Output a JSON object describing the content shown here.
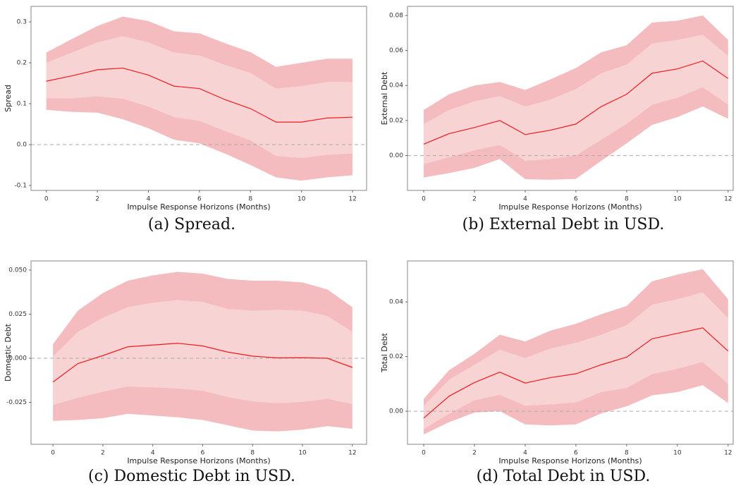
{
  "chart_data": [
    {
      "type": "line",
      "caption": "(a) Spread.",
      "xlabel": "Impulse Response Horizons (Months)",
      "ylabel": "Spread",
      "x": [
        0,
        1,
        2,
        3,
        4,
        5,
        6,
        7,
        8,
        9,
        10,
        11,
        12
      ],
      "xlim": [
        -0.6,
        12.55
      ],
      "xticks": [
        0,
        2,
        4,
        6,
        8,
        10,
        12
      ],
      "ylim": [
        -0.112,
        0.338
      ],
      "yticks": [
        -0.1,
        {
          "value": 0,
          "label": "0.0"
        },
        0.1,
        0.2,
        0.3
      ],
      "hline": 0,
      "color": "#ee1c1c",
      "values": [
        0.155,
        0.168,
        0.183,
        0.187,
        0.17,
        0.143,
        0.137,
        0.11,
        0.088,
        0.055,
        0.055,
        0.065,
        0.067
      ],
      "bands": [
        {
          "color": "#f4bcbe",
          "lower": [
            0.085,
            0.08,
            0.078,
            0.062,
            0.04,
            0.012,
            0.003,
            -0.022,
            -0.05,
            -0.08,
            -0.088,
            -0.08,
            -0.075
          ],
          "upper": [
            0.225,
            0.258,
            0.29,
            0.313,
            0.302,
            0.277,
            0.272,
            0.248,
            0.226,
            0.19,
            0.2,
            0.21,
            0.21
          ]
        },
        {
          "color": "#f8d3d4",
          "lower": [
            0.113,
            0.113,
            0.118,
            0.112,
            0.093,
            0.067,
            0.058,
            0.033,
            0.01,
            -0.028,
            -0.033,
            -0.025,
            -0.022
          ],
          "upper": [
            0.2,
            0.225,
            0.25,
            0.265,
            0.25,
            0.225,
            0.218,
            0.195,
            0.175,
            0.137,
            0.143,
            0.153,
            0.153
          ]
        }
      ]
    },
    {
      "type": "line",
      "caption": "(b) External Debt in USD.",
      "xlabel": "Impulse Response Horizons (Months)",
      "ylabel": "External Debt",
      "x": [
        0,
        1,
        2,
        3,
        4,
        5,
        6,
        7,
        8,
        9,
        10,
        11,
        12
      ],
      "xlim": [
        -0.64,
        12.2
      ],
      "xticks": [
        0,
        2,
        4,
        6,
        8,
        10,
        12
      ],
      "ylim": [
        -0.0199,
        0.0852
      ],
      "yticks": [
        {
          "value": 0,
          "label": "0.00"
        },
        {
          "value": 0.02,
          "label": "0.02"
        },
        {
          "value": 0.04,
          "label": "0.04"
        },
        {
          "value": 0.06,
          "label": "0.06"
        },
        {
          "value": 0.08,
          "label": "0.08"
        }
      ],
      "hline": 0,
      "color": "#ee1c1c",
      "values": [
        0.0065,
        0.0125,
        0.016,
        0.02,
        0.012,
        0.0145,
        0.018,
        0.028,
        0.035,
        0.047,
        0.0495,
        0.054,
        0.044
      ],
      "bands": [
        {
          "color": "#f4bcbe",
          "lower": [
            -0.0125,
            -0.01,
            -0.007,
            -0.002,
            -0.0135,
            -0.0138,
            -0.0133,
            -0.003,
            0.007,
            0.0175,
            0.022,
            0.028,
            0.021
          ],
          "upper": [
            0.026,
            0.035,
            0.04,
            0.042,
            0.0375,
            0.0435,
            0.05,
            0.059,
            0.063,
            0.076,
            0.077,
            0.08,
            0.066
          ]
        },
        {
          "color": "#f8d3d4",
          "lower": [
            -0.005,
            -0.001,
            0.003,
            0.006,
            -0.003,
            -0.002,
            0.0,
            0.009,
            0.018,
            0.029,
            0.033,
            0.039,
            0.029
          ],
          "upper": [
            0.018,
            0.026,
            0.031,
            0.034,
            0.028,
            0.032,
            0.038,
            0.047,
            0.052,
            0.064,
            0.066,
            0.069,
            0.057
          ]
        }
      ]
    },
    {
      "type": "line",
      "caption": "(c) Domestic Debt in USD.",
      "xlabel": "Impulse Response Horizons (Months)",
      "ylabel": "Domestic Debt",
      "x": [
        0,
        1,
        2,
        3,
        4,
        5,
        6,
        7,
        8,
        9,
        10,
        11,
        12
      ],
      "xlim": [
        -0.88,
        12.57
      ],
      "xticks": [
        0,
        2,
        4,
        6,
        8,
        10,
        12
      ],
      "ylim": [
        -0.0488,
        0.0552
      ],
      "yticks": [
        -0.025,
        {
          "value": 0,
          "label": "0.000"
        },
        0.025,
        {
          "value": 0.05,
          "label": "0.050"
        }
      ],
      "hline": 0,
      "color": "#ee1c1c",
      "values": [
        -0.0135,
        -0.003,
        0.0015,
        0.0065,
        0.0075,
        0.0085,
        0.007,
        0.0035,
        0.0012,
        0.0002,
        0.0003,
        0.0,
        -0.0052
      ],
      "bands": [
        {
          "color": "#f4bcbe",
          "lower": [
            -0.0355,
            -0.035,
            -0.034,
            -0.0315,
            -0.0325,
            -0.0335,
            -0.035,
            -0.038,
            -0.041,
            -0.0415,
            -0.0405,
            -0.0385,
            -0.04
          ],
          "upper": [
            0.008,
            0.027,
            0.037,
            0.044,
            0.047,
            0.049,
            0.048,
            0.045,
            0.044,
            0.044,
            0.043,
            0.039,
            0.029
          ]
        },
        {
          "color": "#f8d3d4",
          "lower": [
            -0.0265,
            -0.0225,
            -0.019,
            -0.016,
            -0.0165,
            -0.0172,
            -0.0185,
            -0.022,
            -0.0245,
            -0.0255,
            -0.0248,
            -0.023,
            -0.026
          ],
          "upper": [
            0.001,
            0.015,
            0.023,
            0.029,
            0.0315,
            0.033,
            0.032,
            0.028,
            0.027,
            0.0275,
            0.027,
            0.024,
            0.015
          ]
        }
      ]
    },
    {
      "type": "line",
      "caption": "(d) Total Debt in USD.",
      "xlabel": "Impulse Response Horizons (Months)",
      "ylabel": "Total Debt",
      "x": [
        0,
        1,
        2,
        3,
        4,
        5,
        6,
        7,
        8,
        9,
        10,
        11,
        12
      ],
      "xlim": [
        -0.64,
        12.2
      ],
      "xticks": [
        0,
        2,
        4,
        6,
        8,
        10,
        12
      ],
      "ylim": [
        -0.0121,
        0.055
      ],
      "yticks": [
        {
          "value": 0,
          "label": "0.00"
        },
        {
          "value": 0.02,
          "label": "0.02"
        },
        {
          "value": 0.04,
          "label": "0.04"
        }
      ],
      "hline": 0,
      "color": "#ee1c1c",
      "values": [
        -0.0025,
        0.0055,
        0.0105,
        0.0143,
        0.0103,
        0.0123,
        0.0137,
        0.017,
        0.0198,
        0.0265,
        0.0285,
        0.0305,
        0.022
      ],
      "bands": [
        {
          "color": "#f4bcbe",
          "lower": [
            -0.0085,
            -0.004,
            -0.0005,
            0.0,
            -0.0048,
            -0.0052,
            -0.0048,
            -0.0008,
            0.0018,
            0.0058,
            0.007,
            0.0095,
            0.003
          ],
          "upper": [
            0.0045,
            0.015,
            0.021,
            0.028,
            0.0255,
            0.0295,
            0.032,
            0.0355,
            0.0385,
            0.0475,
            0.05,
            0.052,
            0.041
          ]
        },
        {
          "color": "#f8d3d4",
          "lower": [
            -0.0065,
            -0.001,
            0.004,
            0.006,
            0.002,
            0.0025,
            0.0032,
            0.007,
            0.0085,
            0.0135,
            0.0155,
            0.018,
            0.01
          ],
          "upper": [
            0.002,
            0.0115,
            0.017,
            0.0225,
            0.0195,
            0.023,
            0.025,
            0.028,
            0.0315,
            0.039,
            0.041,
            0.0435,
            0.034
          ]
        }
      ]
    }
  ]
}
